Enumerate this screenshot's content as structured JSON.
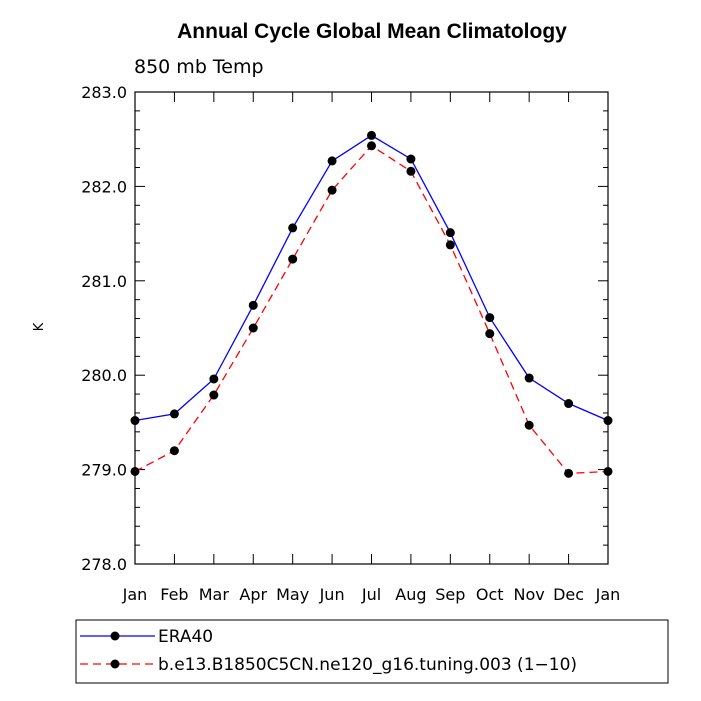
{
  "chart_data": {
    "type": "line",
    "title": "Annual Cycle Global Mean Climatology",
    "subtitle": "850 mb Temp",
    "ylabel": "K",
    "xlabel": "",
    "categories": [
      "Jan",
      "Feb",
      "Mar",
      "Apr",
      "May",
      "Jun",
      "Jul",
      "Aug",
      "Sep",
      "Oct",
      "Nov",
      "Dec",
      "Jan"
    ],
    "ylim": [
      278.0,
      283.0
    ],
    "yticks": [
      "278.0",
      "279.0",
      "280.0",
      "281.0",
      "282.0",
      "283.0"
    ],
    "grid": false,
    "legend_position": "bottom",
    "series": [
      {
        "name": "ERA40",
        "color": "#0000ff",
        "line_style": "solid",
        "marker": "filled-circle",
        "values": [
          279.52,
          279.59,
          279.96,
          280.74,
          281.56,
          282.27,
          282.54,
          282.29,
          281.51,
          280.61,
          279.97,
          279.7,
          279.52
        ]
      },
      {
        "name": "b.e13.B1850C5CN.ne120_g16.tuning.003 (1−10)",
        "color": "#ff0000",
        "line_style": "dashed",
        "marker": "filled-circle",
        "values": [
          278.98,
          279.2,
          279.79,
          280.5,
          281.23,
          281.96,
          282.43,
          282.16,
          281.38,
          280.44,
          279.47,
          278.96,
          278.98
        ]
      }
    ]
  }
}
